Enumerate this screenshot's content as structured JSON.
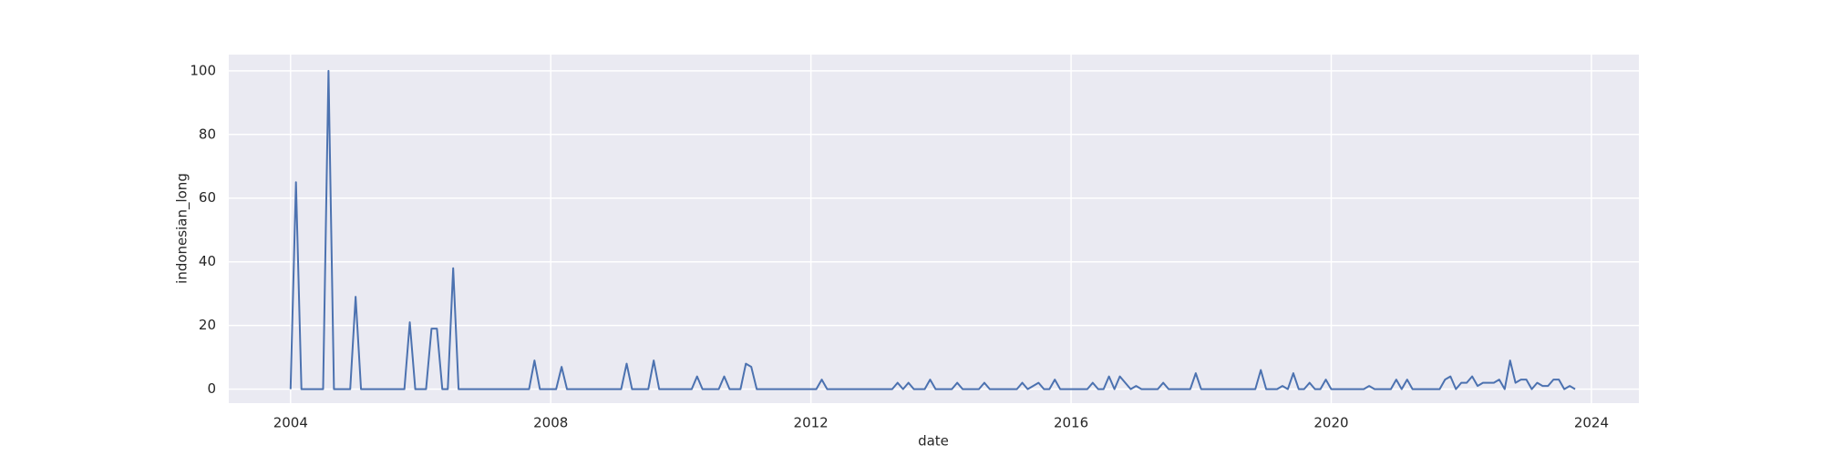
{
  "chart_data": {
    "type": "line",
    "x_label": "date",
    "y_label": "indonesian_long",
    "color": "#4c72b0",
    "background": "#eaeaf2",
    "grid": true,
    "xlim": [
      2003.05,
      2024.73
    ],
    "xticks": [
      2004,
      2008,
      2012,
      2016,
      2020,
      2024
    ],
    "ylim": [
      -4.4,
      105.1
    ],
    "yticks": [
      0,
      20,
      40,
      60,
      80,
      100
    ],
    "x": [
      2004.0,
      2004.083,
      2004.167,
      2004.25,
      2004.333,
      2004.417,
      2004.5,
      2004.583,
      2004.667,
      2004.75,
      2004.833,
      2004.917,
      2005.0,
      2005.083,
      2005.167,
      2005.25,
      2005.333,
      2005.417,
      2005.5,
      2005.583,
      2005.667,
      2005.75,
      2005.833,
      2005.917,
      2006.0,
      2006.083,
      2006.167,
      2006.25,
      2006.333,
      2006.417,
      2006.5,
      2006.583,
      2006.667,
      2006.75,
      2006.833,
      2006.917,
      2007.0,
      2007.083,
      2007.167,
      2007.25,
      2007.333,
      2007.417,
      2007.5,
      2007.583,
      2007.667,
      2007.75,
      2007.833,
      2007.917,
      2008.0,
      2008.083,
      2008.167,
      2008.25,
      2008.333,
      2008.417,
      2008.5,
      2008.583,
      2008.667,
      2008.75,
      2008.833,
      2008.917,
      2009.0,
      2009.083,
      2009.167,
      2009.25,
      2009.333,
      2009.417,
      2009.5,
      2009.583,
      2009.667,
      2009.75,
      2009.833,
      2009.917,
      2010.0,
      2010.083,
      2010.167,
      2010.25,
      2010.333,
      2010.417,
      2010.5,
      2010.583,
      2010.667,
      2010.75,
      2010.833,
      2010.917,
      2011.0,
      2011.083,
      2011.167,
      2011.25,
      2011.333,
      2011.417,
      2011.5,
      2011.583,
      2011.667,
      2011.75,
      2011.833,
      2011.917,
      2012.0,
      2012.083,
      2012.167,
      2012.25,
      2012.333,
      2012.417,
      2012.5,
      2012.583,
      2012.667,
      2012.75,
      2012.833,
      2012.917,
      2013.0,
      2013.083,
      2013.167,
      2013.25,
      2013.333,
      2013.417,
      2013.5,
      2013.583,
      2013.667,
      2013.75,
      2013.833,
      2013.917,
      2014.0,
      2014.083,
      2014.167,
      2014.25,
      2014.333,
      2014.417,
      2014.5,
      2014.583,
      2014.667,
      2014.75,
      2014.833,
      2014.917,
      2015.0,
      2015.083,
      2015.167,
      2015.25,
      2015.333,
      2015.417,
      2015.5,
      2015.583,
      2015.667,
      2015.75,
      2015.833,
      2015.917,
      2016.0,
      2016.083,
      2016.167,
      2016.25,
      2016.333,
      2016.417,
      2016.5,
      2016.583,
      2016.667,
      2016.75,
      2016.833,
      2016.917,
      2017.0,
      2017.083,
      2017.167,
      2017.25,
      2017.333,
      2017.417,
      2017.5,
      2017.583,
      2017.667,
      2017.75,
      2017.833,
      2017.917,
      2018.0,
      2018.083,
      2018.167,
      2018.25,
      2018.333,
      2018.417,
      2018.5,
      2018.583,
      2018.667,
      2018.75,
      2018.833,
      2018.917,
      2019.0,
      2019.083,
      2019.167,
      2019.25,
      2019.333,
      2019.417,
      2019.5,
      2019.583,
      2019.667,
      2019.75,
      2019.833,
      2019.917,
      2020.0,
      2020.083,
      2020.167,
      2020.25,
      2020.333,
      2020.417,
      2020.5,
      2020.583,
      2020.667,
      2020.75,
      2020.833,
      2020.917,
      2021.0,
      2021.083,
      2021.167,
      2021.25,
      2021.333,
      2021.417,
      2021.5,
      2021.583,
      2021.667,
      2021.75,
      2021.833,
      2021.917,
      2022.0,
      2022.083,
      2022.167,
      2022.25,
      2022.333,
      2022.417,
      2022.5,
      2022.583,
      2022.667,
      2022.75,
      2022.833,
      2022.917,
      2023.0,
      2023.083,
      2023.167,
      2023.25,
      2023.333,
      2023.417,
      2023.5,
      2023.583,
      2023.667,
      2023.75
    ],
    "values": [
      0,
      65,
      0,
      0,
      0,
      0,
      0,
      100,
      0,
      0,
      0,
      0,
      29,
      0,
      0,
      0,
      0,
      0,
      0,
      0,
      0,
      0,
      21,
      0,
      0,
      0,
      19,
      19,
      0,
      0,
      38,
      0,
      0,
      0,
      0,
      0,
      0,
      0,
      0,
      0,
      0,
      0,
      0,
      0,
      0,
      9,
      0,
      0,
      0,
      0,
      7,
      0,
      0,
      0,
      0,
      0,
      0,
      0,
      0,
      0,
      0,
      0,
      8,
      0,
      0,
      0,
      0,
      9,
      0,
      0,
      0,
      0,
      0,
      0,
      0,
      4,
      0,
      0,
      0,
      0,
      4,
      0,
      0,
      0,
      8,
      7,
      0,
      0,
      0,
      0,
      0,
      0,
      0,
      0,
      0,
      0,
      0,
      0,
      3,
      0,
      0,
      0,
      0,
      0,
      0,
      0,
      0,
      0,
      0,
      0,
      0,
      0,
      2,
      0,
      2,
      0,
      0,
      0,
      3,
      0,
      0,
      0,
      0,
      2,
      0,
      0,
      0,
      0,
      2,
      0,
      0,
      0,
      0,
      0,
      0,
      2,
      0,
      1,
      2,
      0,
      0,
      3,
      0,
      0,
      0,
      0,
      0,
      0,
      2,
      0,
      0,
      4,
      0,
      4,
      2,
      0,
      1,
      0,
      0,
      0,
      0,
      2,
      0,
      0,
      0,
      0,
      0,
      5,
      0,
      0,
      0,
      0,
      0,
      0,
      0,
      0,
      0,
      0,
      0,
      6,
      0,
      0,
      0,
      1,
      0,
      5,
      0,
      0,
      2,
      0,
      0,
      3,
      0,
      0,
      0,
      0,
      0,
      0,
      0,
      1,
      0,
      0,
      0,
      0,
      3,
      0,
      3,
      0,
      0,
      0,
      0,
      0,
      0,
      3,
      4,
      0,
      2,
      2,
      4,
      1,
      2,
      2,
      2,
      3,
      0,
      9,
      2,
      3,
      3,
      0,
      2,
      1,
      1,
      3,
      3,
      0,
      1,
      0
    ]
  }
}
